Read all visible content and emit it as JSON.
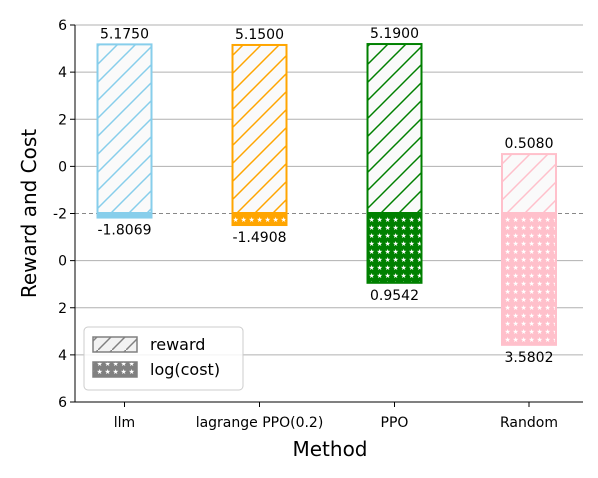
{
  "chart_data": {
    "type": "bar",
    "xlabel": "Method",
    "ylabel": "Reward and Cost",
    "categories": [
      "llm",
      "lagrange PPO(0.2)",
      "PPO",
      "Random"
    ],
    "colors": [
      "#87ceeb",
      "#ffa500",
      "#008000",
      "#ffc0cb"
    ],
    "series": [
      {
        "name": "reward",
        "values": [
          5.175,
          5.15,
          5.19,
          0.508
        ],
        "labels": [
          "5.1750",
          "5.1500",
          "5.1900",
          "0.5080"
        ],
        "pattern": "diagonal-hatch"
      },
      {
        "name": "log(cost)",
        "values": [
          -1.8069,
          -1.4908,
          0.9542,
          3.5802
        ],
        "labels": [
          "-1.8069",
          "-1.4908",
          "0.9542",
          "3.5802"
        ],
        "pattern": "star-hatch"
      }
    ],
    "yticks": [
      "6",
      "4",
      "2",
      "0",
      "-2",
      "0",
      "2",
      "4",
      "6"
    ],
    "upper_ylim": [
      -2,
      6
    ],
    "lower_ylim": [
      -2,
      6
    ],
    "baseline": -2,
    "grid": true,
    "legend_position": "bottom-left"
  }
}
